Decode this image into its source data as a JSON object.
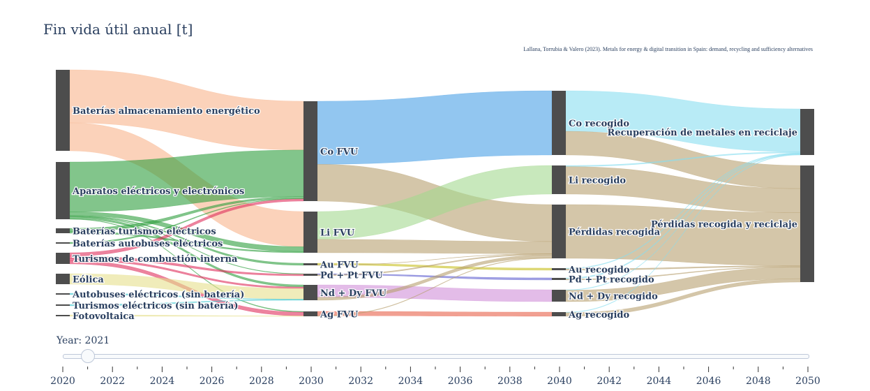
{
  "title": "Fin vida útil anual [t]",
  "source": "Lallana, Torrubia & Valero (2023). Metals for energy & digital transition in Spain: demand, recycling and sufficiency alternatives",
  "slider": {
    "prefix": "Year: ",
    "current": "2021",
    "steps": [
      "2020",
      "2021",
      "2022",
      "2023",
      "2024",
      "2025",
      "2026",
      "2027",
      "2028",
      "2029",
      "2030",
      "2031",
      "2032",
      "2033",
      "2034",
      "2035",
      "2036",
      "2037",
      "2038",
      "2039",
      "2040",
      "2041",
      "2042",
      "2043",
      "2044",
      "2045",
      "2046",
      "2047",
      "2048",
      "2049",
      "2050"
    ],
    "tick_labels": [
      "2020",
      "2022",
      "2024",
      "2026",
      "2028",
      "2030",
      "2032",
      "2034",
      "2036",
      "2038",
      "2040",
      "2042",
      "2044",
      "2046",
      "2048",
      "2050"
    ]
  },
  "chart_data": {
    "type": "sankey",
    "year": "2021",
    "nodes": [
      {
        "label": "Baterías almacenamiento energético",
        "color": "#4d4d4d"
      },
      {
        "label": "Aparatos eléctricos y electrónicos",
        "color": "#4d4d4d"
      },
      {
        "label": "Baterías turismos eléctricos",
        "color": "#4d4d4d"
      },
      {
        "label": "Baterías autobuses eléctricos",
        "color": "#4d4d4d"
      },
      {
        "label": "Turismos de combustión interna",
        "color": "#4d4d4d"
      },
      {
        "label": "Eólica",
        "color": "#4d4d4d"
      },
      {
        "label": "Autobuses eléctricos (sin batería)",
        "color": "#4d4d4d"
      },
      {
        "label": "Turismos eléctricos (sin batería)",
        "color": "#4d4d4d"
      },
      {
        "label": "Fotovoltaica",
        "color": "#4d4d4d"
      },
      {
        "label": "Co FVU",
        "color": "#4d4d4d"
      },
      {
        "label": "Li FVU",
        "color": "#4d4d4d"
      },
      {
        "label": "Au FVU",
        "color": "#4d4d4d"
      },
      {
        "label": "Pd + Pt FVU",
        "color": "#4d4d4d"
      },
      {
        "label": "Nd + Dy FVU",
        "color": "#4d4d4d"
      },
      {
        "label": "Ag FVU",
        "color": "#4d4d4d"
      },
      {
        "label": "Co recogido",
        "color": "#4d4d4d"
      },
      {
        "label": "Li recogido",
        "color": "#4d4d4d"
      },
      {
        "label": "Pérdidas recogida",
        "color": "#4d4d4d"
      },
      {
        "label": "Au recogido",
        "color": "#4d4d4d"
      },
      {
        "label": "Pd + Pt recogido",
        "color": "#4d4d4d"
      },
      {
        "label": "Nd + Dy recogido",
        "color": "#4d4d4d"
      },
      {
        "label": "Ag recogido",
        "color": "#4d4d4d"
      },
      {
        "label": "Recuperación de metales en reciclaje",
        "color": "#4d4d4d"
      },
      {
        "label": "Pérdidas recogida y reciclaje",
        "color": "#4d4d4d"
      }
    ],
    "links": [
      {
        "source": 0,
        "target": 9,
        "value": 110,
        "color": "#f8b48c"
      },
      {
        "source": 0,
        "target": 10,
        "value": 58,
        "color": "#f8b48c"
      },
      {
        "source": 1,
        "target": 9,
        "value": 105,
        "color": "#2e9e3e"
      },
      {
        "source": 1,
        "target": 10,
        "value": 8,
        "color": "#2e9e3e"
      },
      {
        "source": 1,
        "target": 11,
        "value": 1.5,
        "color": "#2e9e3e"
      },
      {
        "source": 1,
        "target": 12,
        "value": 1.2,
        "color": "#2e9e3e"
      },
      {
        "source": 1,
        "target": 13,
        "value": 4,
        "color": "#2e9e3e"
      },
      {
        "source": 1,
        "target": 14,
        "value": 1,
        "color": "#2e9e3e"
      },
      {
        "source": 2,
        "target": 9,
        "value": 4,
        "color": "#2e9e3e"
      },
      {
        "source": 2,
        "target": 10,
        "value": 2,
        "color": "#2e9e3e"
      },
      {
        "source": 3,
        "target": 9,
        "value": 1,
        "color": "#2e9e3e"
      },
      {
        "source": 4,
        "target": 9,
        "value": 5,
        "color": "#e0305e"
      },
      {
        "source": 4,
        "target": 12,
        "value": 4,
        "color": "#e0305e"
      },
      {
        "source": 4,
        "target": 13,
        "value": 3,
        "color": "#e0305e"
      },
      {
        "source": 4,
        "target": 14,
        "value": 5,
        "color": "#e0305e"
      },
      {
        "source": 5,
        "target": 13,
        "value": 20,
        "color": "#e6e08c"
      },
      {
        "source": 6,
        "target": 13,
        "value": 1,
        "color": "#40c8d0"
      },
      {
        "source": 7,
        "target": 13,
        "value": 1,
        "color": "#40c8d0"
      },
      {
        "source": 8,
        "target": 14,
        "value": 0.6,
        "color": "#e6e08c"
      },
      {
        "source": 9,
        "target": 15,
        "value": 130,
        "color": "#4aa0e6"
      },
      {
        "source": 9,
        "target": 17,
        "value": 76,
        "color": "#b8a070"
      },
      {
        "source": 10,
        "target": 16,
        "value": 52,
        "color": "#a4d890"
      },
      {
        "source": 10,
        "target": 17,
        "value": 25,
        "color": "#b8a070"
      },
      {
        "source": 11,
        "target": 18,
        "value": 3,
        "color": "#c8c020"
      },
      {
        "source": 11,
        "target": 17,
        "value": 0.5,
        "color": "#b8a070"
      },
      {
        "source": 12,
        "target": 19,
        "value": 2,
        "color": "#6060d0"
      },
      {
        "source": 12,
        "target": 17,
        "value": 2,
        "color": "#b8a070"
      },
      {
        "source": 13,
        "target": 20,
        "value": 25,
        "color": "#d090d8"
      },
      {
        "source": 13,
        "target": 17,
        "value": 6,
        "color": "#b8a070"
      },
      {
        "source": 14,
        "target": 21,
        "value": 8,
        "color": "#e8604a"
      },
      {
        "source": 14,
        "target": 17,
        "value": 1,
        "color": "#b8a070"
      },
      {
        "source": 15,
        "target": 22,
        "value": 82,
        "color": "#88def0"
      },
      {
        "source": 15,
        "target": 23,
        "value": 48,
        "color": "#b8a070"
      },
      {
        "source": 16,
        "target": 22,
        "value": 2,
        "color": "#88def0"
      },
      {
        "source": 16,
        "target": 23,
        "value": 50,
        "color": "#b8a070"
      },
      {
        "source": 17,
        "target": 23,
        "value": 110,
        "color": "#b8a070"
      },
      {
        "source": 18,
        "target": 22,
        "value": 1,
        "color": "#88def0"
      },
      {
        "source": 18,
        "target": 23,
        "value": 2,
        "color": "#b8a070"
      },
      {
        "source": 19,
        "target": 22,
        "value": 1,
        "color": "#88def0"
      },
      {
        "source": 19,
        "target": 23,
        "value": 1,
        "color": "#b8a070"
      },
      {
        "source": 20,
        "target": 22,
        "value": 1,
        "color": "#88def0"
      },
      {
        "source": 20,
        "target": 23,
        "value": 24,
        "color": "#b8a070"
      },
      {
        "source": 21,
        "target": 22,
        "value": 1,
        "color": "#88def0"
      },
      {
        "source": 21,
        "target": 23,
        "value": 7,
        "color": "#b8a070"
      }
    ]
  }
}
